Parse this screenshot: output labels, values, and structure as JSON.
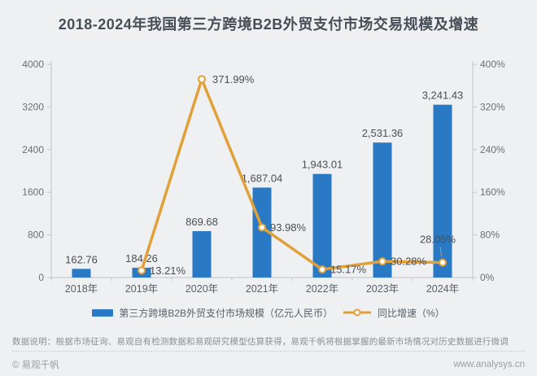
{
  "title": "2018-2024年我国第三方跨境B2B外贸支付市场交易规模及增速",
  "chart_data": {
    "type": "bar+line",
    "categories": [
      "2018年",
      "2019年",
      "2020年",
      "2021年",
      "2022年",
      "2023年",
      "2024年"
    ],
    "series": [
      {
        "name": "第三方跨境B2B外贸支付市场规模（亿元人民币）",
        "chart_type": "bar",
        "axis": "left",
        "color": "#2a79c5",
        "values": [
          162.76,
          184.26,
          869.68,
          1687.04,
          1943.01,
          2531.36,
          3241.43
        ],
        "value_labels": [
          "162.76",
          "184.26",
          "869.68",
          "1,687.04",
          "1,943.01",
          "2,531.36",
          "3,241.43"
        ]
      },
      {
        "name": "同比增速（%）",
        "chart_type": "line",
        "axis": "right",
        "color": "#e2a039",
        "marker": "hollow-circle",
        "values": [
          null,
          13.21,
          371.99,
          93.98,
          15.17,
          30.28,
          28.05
        ],
        "value_labels": [
          "",
          "13.21%",
          "371.99%",
          "93.98%",
          "15.17%",
          "30.28%",
          "28.05%"
        ]
      }
    ],
    "left_axis": {
      "min": 0,
      "max": 4000,
      "tick_labels": [
        "0",
        "800",
        "1600",
        "2400",
        "3200",
        "4000"
      ]
    },
    "right_axis": {
      "min": 0,
      "max": 400,
      "tick_labels": [
        "0%",
        "80%",
        "160%",
        "240%",
        "320%",
        "400%"
      ]
    },
    "grid": false,
    "legend_position": "bottom"
  },
  "colors": {
    "background": "#eef0f1",
    "bar": "#2a79c5",
    "line": "#e2a039",
    "axis": "#c2c4c6",
    "label_text": "#4a4f54"
  },
  "footnote": "数据说明：根据市场征询、易观自有检测数据和易观研究模型估算获得，易观千帆将根据掌握的最新市场情况对历史数据进行微调",
  "footer": {
    "copyright": "© 易观千帆",
    "website": "www.analysys.cn"
  }
}
